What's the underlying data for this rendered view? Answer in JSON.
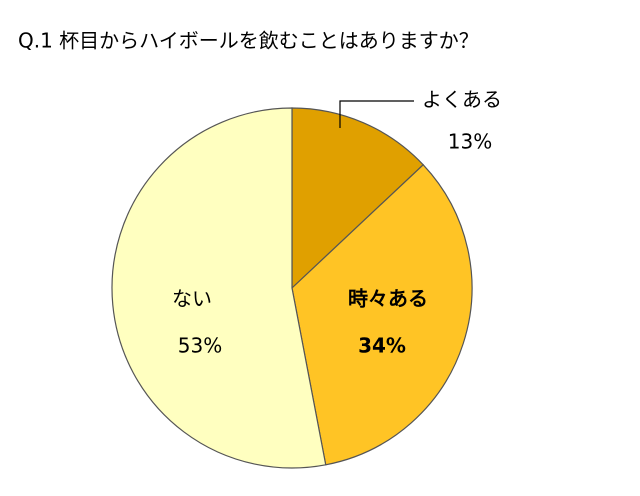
{
  "chart_data": {
    "type": "pie",
    "title": "Q.1 杯目からハイボールを飲むことはありますか？",
    "categories": [
      "よくある",
      "時々ある",
      "ない"
    ],
    "values": [
      13,
      34,
      53
    ],
    "value_labels": [
      "13%",
      "34%",
      "53%"
    ],
    "colors": [
      "#e0a000",
      "#ffc425",
      "#ffffc0"
    ]
  }
}
